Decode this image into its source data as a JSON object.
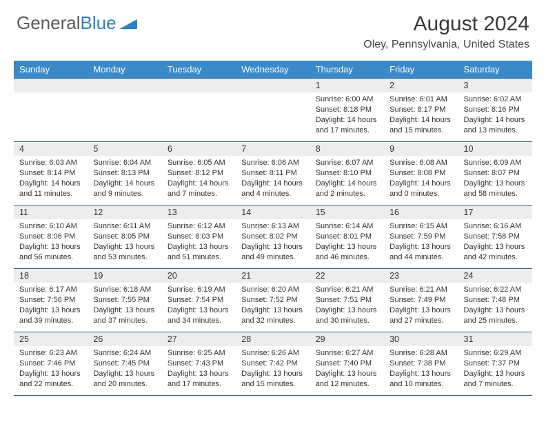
{
  "logo": {
    "text1": "General",
    "text2": "Blue"
  },
  "title": "August 2024",
  "location": "Oley, Pennsylvania, United States",
  "colors": {
    "header_bg": "#3a89c9",
    "header_text": "#ffffff",
    "border": "#2f5e84",
    "daynum_bg": "#ededed",
    "logo_gray": "#5a5a5a",
    "logo_blue": "#2f7fc1"
  },
  "weekdays": [
    "Sunday",
    "Monday",
    "Tuesday",
    "Wednesday",
    "Thursday",
    "Friday",
    "Saturday"
  ],
  "weeks": [
    [
      null,
      null,
      null,
      null,
      {
        "n": "1",
        "sr": "Sunrise: 6:00 AM",
        "ss": "Sunset: 8:18 PM",
        "dl": "Daylight: 14 hours and 17 minutes."
      },
      {
        "n": "2",
        "sr": "Sunrise: 6:01 AM",
        "ss": "Sunset: 8:17 PM",
        "dl": "Daylight: 14 hours and 15 minutes."
      },
      {
        "n": "3",
        "sr": "Sunrise: 6:02 AM",
        "ss": "Sunset: 8:16 PM",
        "dl": "Daylight: 14 hours and 13 minutes."
      }
    ],
    [
      {
        "n": "4",
        "sr": "Sunrise: 6:03 AM",
        "ss": "Sunset: 8:14 PM",
        "dl": "Daylight: 14 hours and 11 minutes."
      },
      {
        "n": "5",
        "sr": "Sunrise: 6:04 AM",
        "ss": "Sunset: 8:13 PM",
        "dl": "Daylight: 14 hours and 9 minutes."
      },
      {
        "n": "6",
        "sr": "Sunrise: 6:05 AM",
        "ss": "Sunset: 8:12 PM",
        "dl": "Daylight: 14 hours and 7 minutes."
      },
      {
        "n": "7",
        "sr": "Sunrise: 6:06 AM",
        "ss": "Sunset: 8:11 PM",
        "dl": "Daylight: 14 hours and 4 minutes."
      },
      {
        "n": "8",
        "sr": "Sunrise: 6:07 AM",
        "ss": "Sunset: 8:10 PM",
        "dl": "Daylight: 14 hours and 2 minutes."
      },
      {
        "n": "9",
        "sr": "Sunrise: 6:08 AM",
        "ss": "Sunset: 8:08 PM",
        "dl": "Daylight: 14 hours and 0 minutes."
      },
      {
        "n": "10",
        "sr": "Sunrise: 6:09 AM",
        "ss": "Sunset: 8:07 PM",
        "dl": "Daylight: 13 hours and 58 minutes."
      }
    ],
    [
      {
        "n": "11",
        "sr": "Sunrise: 6:10 AM",
        "ss": "Sunset: 8:06 PM",
        "dl": "Daylight: 13 hours and 56 minutes."
      },
      {
        "n": "12",
        "sr": "Sunrise: 6:11 AM",
        "ss": "Sunset: 8:05 PM",
        "dl": "Daylight: 13 hours and 53 minutes."
      },
      {
        "n": "13",
        "sr": "Sunrise: 6:12 AM",
        "ss": "Sunset: 8:03 PM",
        "dl": "Daylight: 13 hours and 51 minutes."
      },
      {
        "n": "14",
        "sr": "Sunrise: 6:13 AM",
        "ss": "Sunset: 8:02 PM",
        "dl": "Daylight: 13 hours and 49 minutes."
      },
      {
        "n": "15",
        "sr": "Sunrise: 6:14 AM",
        "ss": "Sunset: 8:01 PM",
        "dl": "Daylight: 13 hours and 46 minutes."
      },
      {
        "n": "16",
        "sr": "Sunrise: 6:15 AM",
        "ss": "Sunset: 7:59 PM",
        "dl": "Daylight: 13 hours and 44 minutes."
      },
      {
        "n": "17",
        "sr": "Sunrise: 6:16 AM",
        "ss": "Sunset: 7:58 PM",
        "dl": "Daylight: 13 hours and 42 minutes."
      }
    ],
    [
      {
        "n": "18",
        "sr": "Sunrise: 6:17 AM",
        "ss": "Sunset: 7:56 PM",
        "dl": "Daylight: 13 hours and 39 minutes."
      },
      {
        "n": "19",
        "sr": "Sunrise: 6:18 AM",
        "ss": "Sunset: 7:55 PM",
        "dl": "Daylight: 13 hours and 37 minutes."
      },
      {
        "n": "20",
        "sr": "Sunrise: 6:19 AM",
        "ss": "Sunset: 7:54 PM",
        "dl": "Daylight: 13 hours and 34 minutes."
      },
      {
        "n": "21",
        "sr": "Sunrise: 6:20 AM",
        "ss": "Sunset: 7:52 PM",
        "dl": "Daylight: 13 hours and 32 minutes."
      },
      {
        "n": "22",
        "sr": "Sunrise: 6:21 AM",
        "ss": "Sunset: 7:51 PM",
        "dl": "Daylight: 13 hours and 30 minutes."
      },
      {
        "n": "23",
        "sr": "Sunrise: 6:21 AM",
        "ss": "Sunset: 7:49 PM",
        "dl": "Daylight: 13 hours and 27 minutes."
      },
      {
        "n": "24",
        "sr": "Sunrise: 6:22 AM",
        "ss": "Sunset: 7:48 PM",
        "dl": "Daylight: 13 hours and 25 minutes."
      }
    ],
    [
      {
        "n": "25",
        "sr": "Sunrise: 6:23 AM",
        "ss": "Sunset: 7:46 PM",
        "dl": "Daylight: 13 hours and 22 minutes."
      },
      {
        "n": "26",
        "sr": "Sunrise: 6:24 AM",
        "ss": "Sunset: 7:45 PM",
        "dl": "Daylight: 13 hours and 20 minutes."
      },
      {
        "n": "27",
        "sr": "Sunrise: 6:25 AM",
        "ss": "Sunset: 7:43 PM",
        "dl": "Daylight: 13 hours and 17 minutes."
      },
      {
        "n": "28",
        "sr": "Sunrise: 6:26 AM",
        "ss": "Sunset: 7:42 PM",
        "dl": "Daylight: 13 hours and 15 minutes."
      },
      {
        "n": "29",
        "sr": "Sunrise: 6:27 AM",
        "ss": "Sunset: 7:40 PM",
        "dl": "Daylight: 13 hours and 12 minutes."
      },
      {
        "n": "30",
        "sr": "Sunrise: 6:28 AM",
        "ss": "Sunset: 7:38 PM",
        "dl": "Daylight: 13 hours and 10 minutes."
      },
      {
        "n": "31",
        "sr": "Sunrise: 6:29 AM",
        "ss": "Sunset: 7:37 PM",
        "dl": "Daylight: 13 hours and 7 minutes."
      }
    ]
  ]
}
